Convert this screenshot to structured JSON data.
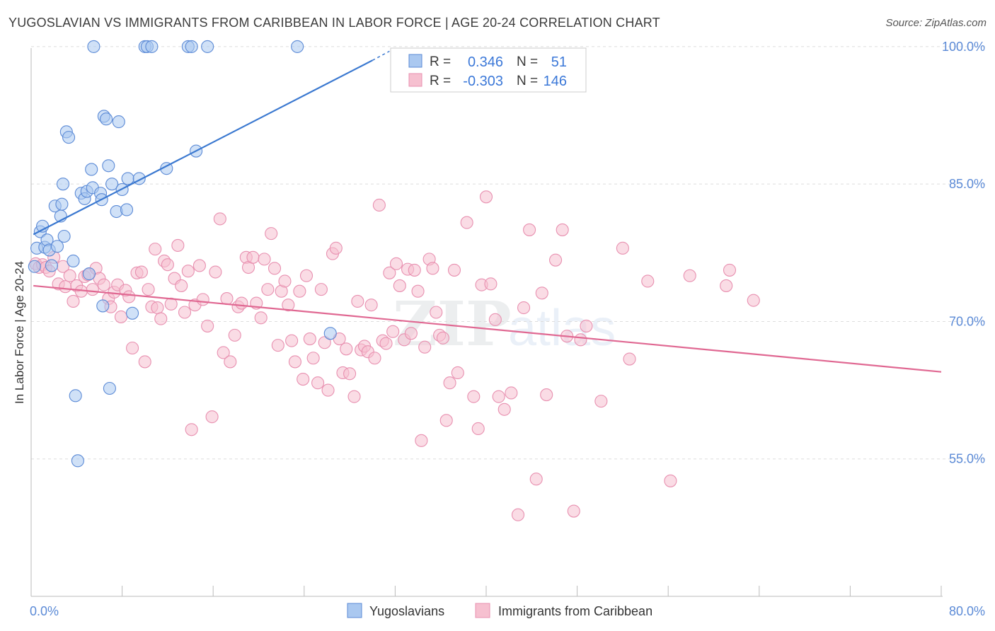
{
  "header": {
    "title": "YUGOSLAVIAN VS IMMIGRANTS FROM CARIBBEAN IN LABOR FORCE | AGE 20-24 CORRELATION CHART",
    "source": "Source: ZipAtlas.com"
  },
  "watermark": {
    "zip": "ZIP",
    "atlas": "atlas"
  },
  "legend": {
    "rows": [
      {
        "r_label": "R =",
        "r_value": "0.346",
        "n_label": "N =",
        "n_value": "51"
      },
      {
        "r_label": "R =",
        "r_value": "-0.303",
        "n_label": "N =",
        "n_value": "146"
      }
    ]
  },
  "colors": {
    "blue_fill": "#aac8f0",
    "blue_stroke": "#5b8ad6",
    "blue_line": "#3a78d0",
    "pink_fill": "#f6c0d0",
    "pink_stroke": "#e890b0",
    "pink_line": "#e06892",
    "grid": "#dddddd",
    "tick_text": "#5b8ad6"
  },
  "chart_data": {
    "type": "scatter",
    "title": "YUGOSLAVIAN VS IMMIGRANTS FROM CARIBBEAN IN LABOR FORCE | AGE 20-24 CORRELATION CHART",
    "xlabel": "",
    "ylabel": "In Labor Force | Age 20-24",
    "xlim": [
      0,
      80
    ],
    "ylim": [
      40,
      102
    ],
    "x_tick_labels": [
      "0.0%",
      "80.0%"
    ],
    "y_ticks": [
      55,
      70,
      85,
      100
    ],
    "y_tick_labels": [
      "55.0%",
      "70.0%",
      "85.0%",
      "100.0%"
    ],
    "grid": true,
    "legend_position": "bottom",
    "series": [
      {
        "name": "Yugoslavians",
        "r": 0.346,
        "n": 51,
        "trend": {
          "x0": 0.2,
          "y0": 79.5,
          "x1": 30.0,
          "y1": 98.5,
          "dashed_to": [
            31.5,
            99.5
          ]
        },
        "points": [
          [
            0.3,
            76.0
          ],
          [
            0.5,
            78.0
          ],
          [
            0.8,
            79.8
          ],
          [
            1.0,
            80.4
          ],
          [
            1.2,
            78.1
          ],
          [
            1.4,
            78.9
          ],
          [
            1.6,
            77.8
          ],
          [
            1.8,
            76.1
          ],
          [
            2.1,
            82.6
          ],
          [
            2.3,
            78.2
          ],
          [
            2.6,
            81.5
          ],
          [
            2.7,
            82.8
          ],
          [
            2.8,
            85.0
          ],
          [
            2.9,
            79.3
          ],
          [
            3.1,
            90.7
          ],
          [
            3.3,
            90.1
          ],
          [
            3.7,
            76.6
          ],
          [
            3.9,
            61.9
          ],
          [
            4.1,
            54.8
          ],
          [
            4.4,
            84.0
          ],
          [
            4.7,
            83.4
          ],
          [
            4.9,
            84.2
          ],
          [
            5.1,
            75.2
          ],
          [
            5.3,
            86.6
          ],
          [
            5.4,
            84.6
          ],
          [
            5.5,
            100.0
          ],
          [
            6.1,
            84.0
          ],
          [
            6.2,
            83.3
          ],
          [
            6.3,
            71.7
          ],
          [
            6.4,
            92.4
          ],
          [
            6.6,
            92.1
          ],
          [
            6.8,
            87.0
          ],
          [
            6.9,
            62.7
          ],
          [
            7.1,
            85.0
          ],
          [
            7.5,
            82.0
          ],
          [
            7.7,
            91.8
          ],
          [
            8.0,
            84.4
          ],
          [
            8.4,
            82.2
          ],
          [
            8.5,
            85.6
          ],
          [
            8.9,
            70.9
          ],
          [
            9.5,
            85.6
          ],
          [
            10.0,
            100.0
          ],
          [
            10.2,
            100.0
          ],
          [
            10.6,
            100.0
          ],
          [
            11.9,
            86.7
          ],
          [
            13.8,
            100.0
          ],
          [
            14.1,
            100.0
          ],
          [
            14.5,
            88.6
          ],
          [
            15.5,
            100.0
          ],
          [
            23.4,
            100.0
          ],
          [
            26.3,
            68.7
          ]
        ]
      },
      {
        "name": "Immigrants from Caribbean",
        "r": -0.303,
        "n": 146,
        "trend": {
          "x0": 0.2,
          "y0": 73.9,
          "x1": 80.0,
          "y1": 64.5
        },
        "points": [
          [
            0.4,
            76.3
          ],
          [
            0.7,
            75.9
          ],
          [
            1.0,
            76.2
          ],
          [
            1.3,
            75.9
          ],
          [
            1.6,
            75.5
          ],
          [
            2.0,
            77.0
          ],
          [
            2.4,
            74.1
          ],
          [
            2.8,
            76.0
          ],
          [
            3.0,
            73.8
          ],
          [
            3.4,
            75.0
          ],
          [
            3.7,
            72.2
          ],
          [
            4.0,
            73.9
          ],
          [
            4.4,
            73.3
          ],
          [
            4.7,
            74.9
          ],
          [
            5.0,
            75.1
          ],
          [
            5.4,
            73.5
          ],
          [
            5.7,
            75.8
          ],
          [
            6.0,
            74.7
          ],
          [
            6.4,
            74.0
          ],
          [
            6.8,
            72.5
          ],
          [
            7.0,
            71.6
          ],
          [
            7.3,
            73.2
          ],
          [
            7.6,
            74.0
          ],
          [
            7.9,
            70.5
          ],
          [
            8.3,
            73.4
          ],
          [
            8.6,
            72.7
          ],
          [
            8.9,
            67.1
          ],
          [
            9.3,
            75.3
          ],
          [
            9.7,
            75.4
          ],
          [
            10.0,
            65.6
          ],
          [
            10.3,
            73.5
          ],
          [
            10.6,
            71.6
          ],
          [
            10.9,
            77.9
          ],
          [
            11.1,
            71.5
          ],
          [
            11.4,
            70.3
          ],
          [
            11.7,
            76.6
          ],
          [
            12.0,
            76.2
          ],
          [
            12.3,
            71.9
          ],
          [
            12.6,
            74.7
          ],
          [
            12.9,
            78.3
          ],
          [
            13.2,
            73.9
          ],
          [
            13.5,
            71.0
          ],
          [
            13.8,
            75.5
          ],
          [
            14.1,
            58.2
          ],
          [
            14.4,
            71.8
          ],
          [
            14.8,
            76.1
          ],
          [
            15.1,
            72.4
          ],
          [
            15.5,
            69.5
          ],
          [
            15.9,
            59.6
          ],
          [
            16.2,
            75.4
          ],
          [
            16.6,
            81.2
          ],
          [
            16.9,
            66.6
          ],
          [
            17.2,
            72.5
          ],
          [
            17.5,
            65.6
          ],
          [
            17.9,
            68.5
          ],
          [
            18.2,
            71.6
          ],
          [
            18.5,
            72.0
          ],
          [
            18.9,
            77.0
          ],
          [
            19.1,
            75.9
          ],
          [
            19.5,
            77.0
          ],
          [
            19.8,
            72.0
          ],
          [
            20.2,
            70.4
          ],
          [
            20.5,
            76.8
          ],
          [
            20.8,
            73.5
          ],
          [
            21.1,
            79.6
          ],
          [
            21.4,
            75.8
          ],
          [
            21.7,
            67.4
          ],
          [
            22.0,
            73.3
          ],
          [
            22.3,
            74.4
          ],
          [
            22.6,
            71.8
          ],
          [
            22.9,
            67.9
          ],
          [
            23.2,
            65.6
          ],
          [
            23.6,
            73.3
          ],
          [
            23.9,
            63.7
          ],
          [
            24.2,
            75.0
          ],
          [
            24.5,
            68.1
          ],
          [
            24.8,
            66.0
          ],
          [
            25.2,
            63.3
          ],
          [
            25.5,
            73.5
          ],
          [
            25.8,
            67.7
          ],
          [
            26.1,
            62.5
          ],
          [
            26.5,
            77.4
          ],
          [
            26.8,
            78.0
          ],
          [
            27.1,
            68.1
          ],
          [
            27.4,
            64.4
          ],
          [
            27.7,
            67.0
          ],
          [
            28.0,
            64.3
          ],
          [
            28.4,
            61.8
          ],
          [
            28.7,
            72.2
          ],
          [
            29.0,
            66.9
          ],
          [
            29.3,
            67.3
          ],
          [
            29.6,
            66.7
          ],
          [
            29.9,
            71.8
          ],
          [
            30.2,
            66.0
          ],
          [
            30.6,
            82.7
          ],
          [
            30.9,
            67.9
          ],
          [
            31.2,
            67.6
          ],
          [
            31.5,
            75.3
          ],
          [
            31.8,
            68.9
          ],
          [
            32.1,
            76.3
          ],
          [
            32.4,
            73.9
          ],
          [
            32.8,
            68.0
          ],
          [
            33.1,
            75.7
          ],
          [
            33.4,
            68.7
          ],
          [
            33.7,
            75.6
          ],
          [
            34.0,
            73.3
          ],
          [
            34.3,
            57.0
          ],
          [
            34.6,
            67.2
          ],
          [
            35.0,
            76.8
          ],
          [
            35.3,
            75.8
          ],
          [
            35.6,
            71.0
          ],
          [
            35.9,
            68.5
          ],
          [
            36.2,
            68.2
          ],
          [
            36.5,
            59.2
          ],
          [
            36.8,
            63.3
          ],
          [
            37.2,
            75.6
          ],
          [
            37.5,
            64.4
          ],
          [
            38.3,
            80.8
          ],
          [
            38.9,
            61.8
          ],
          [
            39.3,
            58.3
          ],
          [
            39.6,
            74.0
          ],
          [
            40.0,
            83.6
          ],
          [
            40.4,
            74.1
          ],
          [
            40.8,
            70.2
          ],
          [
            41.1,
            61.8
          ],
          [
            41.6,
            60.4
          ],
          [
            42.2,
            62.2
          ],
          [
            42.8,
            48.9
          ],
          [
            43.3,
            71.5
          ],
          [
            43.8,
            80.0
          ],
          [
            44.4,
            52.8
          ],
          [
            44.9,
            73.1
          ],
          [
            45.3,
            62.0
          ],
          [
            46.1,
            76.7
          ],
          [
            46.7,
            80.0
          ],
          [
            47.1,
            68.4
          ],
          [
            47.7,
            49.3
          ],
          [
            48.3,
            68.0
          ],
          [
            48.8,
            69.5
          ],
          [
            50.1,
            61.3
          ],
          [
            52.0,
            78.0
          ],
          [
            52.6,
            65.9
          ],
          [
            54.2,
            74.4
          ],
          [
            56.2,
            52.6
          ],
          [
            57.9,
            75.0
          ],
          [
            61.1,
            73.9
          ],
          [
            61.4,
            75.6
          ],
          [
            63.5,
            72.3
          ]
        ]
      }
    ]
  },
  "bottom_legend": {
    "items": [
      {
        "label": "Yugoslavians"
      },
      {
        "label": "Immigrants from Caribbean"
      }
    ]
  }
}
